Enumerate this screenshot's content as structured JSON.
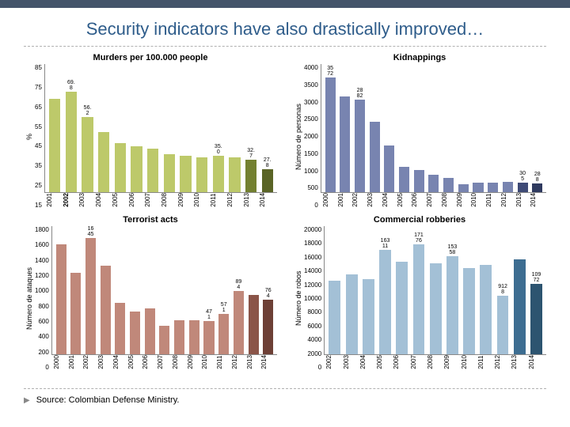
{
  "title": "Security indicators have also drastically improved…",
  "source": "Source: Colombian Defense Ministry.",
  "topbar_color": "#44546a",
  "title_color": "#2e5c8a",
  "charts": [
    {
      "title": "Murders per 100.000 people",
      "y_label": "%",
      "y_ticks": [
        "85",
        "75",
        "65",
        "55",
        "45",
        "35",
        "25",
        "15"
      ],
      "ymin": 15,
      "ymax": 85,
      "x_ticks": [
        "2001",
        "2002",
        "2003",
        "2004",
        "2005",
        "2006",
        "2007",
        "2008",
        "2009",
        "2010",
        "2011",
        "2012",
        "2013",
        "2014"
      ],
      "values": [
        66,
        69.8,
        56.2,
        48,
        42,
        40,
        39,
        36,
        35,
        34,
        35.0,
        34,
        32.7,
        27.8
      ],
      "labels": [
        "",
        "69.\n8",
        "56.\n2",
        "",
        "",
        "",
        "",
        "",
        "",
        "",
        "35.\n0",
        "",
        "32.\n7",
        "27.\n8"
      ],
      "colors": [
        "#bdc96a",
        "#bdc96a",
        "#bdc96a",
        "#bdc96a",
        "#bdc96a",
        "#bdc96a",
        "#bdc96a",
        "#bdc96a",
        "#bdc96a",
        "#bdc96a",
        "#bdc96a",
        "#bdc96a",
        "#738030",
        "#5a6426"
      ],
      "x_bold": [
        "2002"
      ]
    },
    {
      "title": "Kidnappings",
      "y_label": "Número de personas",
      "y_ticks": [
        "4000",
        "3500",
        "3000",
        "2500",
        "2000",
        "1500",
        "1000",
        "500",
        "0"
      ],
      "ymin": 0,
      "ymax": 4000,
      "x_ticks": [
        "2000",
        "2001",
        "2002",
        "2003",
        "2004",
        "2005",
        "2006",
        "2007",
        "2008",
        "2009",
        "2010",
        "2011",
        "2012",
        "2013",
        "2014"
      ],
      "values": [
        3572,
        3000,
        2882,
        2200,
        1450,
        800,
        700,
        550,
        450,
        250,
        300,
        300,
        320,
        305,
        288
      ],
      "labels": [
        "35\n72",
        "",
        "28\n82",
        "",
        "",
        "",
        "",
        "",
        "",
        "",
        "",
        "",
        "",
        "30\n5",
        "28\n8"
      ],
      "colors": [
        "#7884b0",
        "#7884b0",
        "#7884b0",
        "#7884b0",
        "#7884b0",
        "#7884b0",
        "#7884b0",
        "#7884b0",
        "#7884b0",
        "#7884b0",
        "#7884b0",
        "#7884b0",
        "#7884b0",
        "#3e4a76",
        "#2f3a5f"
      ],
      "x_bold": []
    },
    {
      "title": "Terrorist acts",
      "y_label": "Número de ataques",
      "y_ticks": [
        "1800",
        "1600",
        "1400",
        "1200",
        "1000",
        "800",
        "600",
        "400",
        "200",
        "0"
      ],
      "ymin": 0,
      "ymax": 1800,
      "x_ticks": [
        "2000",
        "2001",
        "2002",
        "2003",
        "2004",
        "2005",
        "2006",
        "2007",
        "2008",
        "2009",
        "2010",
        "2011",
        "2012",
        "2013",
        "2014"
      ],
      "values": [
        1550,
        1150,
        1645,
        1250,
        720,
        600,
        650,
        400,
        480,
        480,
        471,
        571,
        894,
        830,
        764
      ],
      "labels": [
        "",
        "",
        "16\n45",
        "",
        "",
        "",
        "",
        "",
        "",
        "",
        "47\n1",
        "57\n1",
        "89\n4",
        "",
        "76\n4"
      ],
      "colors": [
        "#c0887a",
        "#c0887a",
        "#c0887a",
        "#c0887a",
        "#c0887a",
        "#c0887a",
        "#c0887a",
        "#c0887a",
        "#c0887a",
        "#c0887a",
        "#c0887a",
        "#c0887a",
        "#c0887a",
        "#8a5448",
        "#6d4036"
      ],
      "x_bold": []
    },
    {
      "title": "Commercial robberies",
      "y_label": "Número de robos",
      "y_ticks": [
        "20000",
        "18000",
        "16000",
        "14000",
        "12000",
        "10000",
        "8000",
        "6000",
        "4000",
        "2000",
        "0"
      ],
      "ymin": 0,
      "ymax": 20000,
      "x_ticks": [
        "2002",
        "2003",
        "2004",
        "2005",
        "2006",
        "2007",
        "2008",
        "2009",
        "2010",
        "2011",
        "2012",
        "2013",
        "2014"
      ],
      "values": [
        11500,
        12500,
        11800,
        16311,
        14500,
        17176,
        14200,
        15358,
        13500,
        14000,
        9128,
        14800,
        10972
      ],
      "labels": [
        "",
        "",
        "",
        "163\n11",
        "",
        "171\n76",
        "",
        "153\n58",
        "",
        "",
        "912\n8",
        "",
        "109\n72"
      ],
      "colors": [
        "#a3c0d6",
        "#a3c0d6",
        "#a3c0d6",
        "#a3c0d6",
        "#a3c0d6",
        "#a3c0d6",
        "#a3c0d6",
        "#a3c0d6",
        "#a3c0d6",
        "#a3c0d6",
        "#a3c0d6",
        "#3d6d91",
        "#2d5470"
      ],
      "x_bold": []
    }
  ]
}
